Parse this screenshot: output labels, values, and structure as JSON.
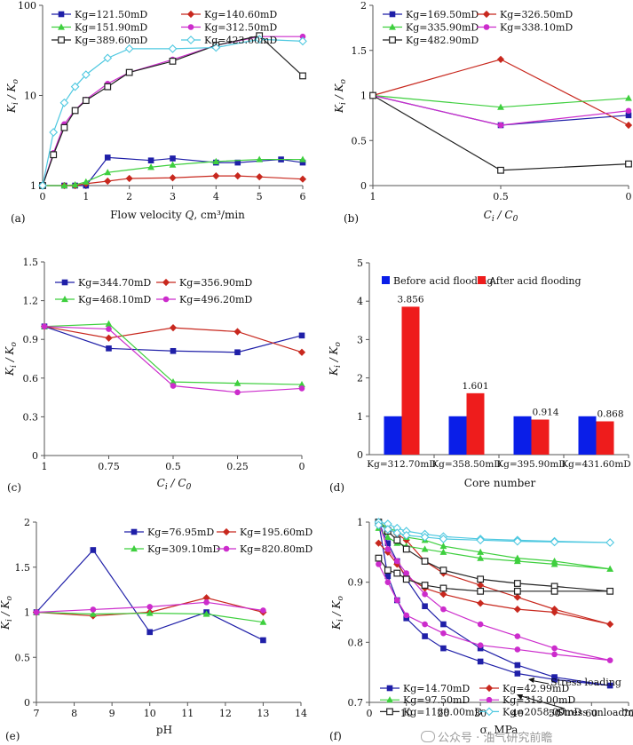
{
  "watermark": "公众号 · 油气研究前瞻",
  "chart_data": [
    {
      "panel": "(a)",
      "type": "line",
      "yscale": "log",
      "xlabel": "Flow velocity Q, cm³/min",
      "ylabel": "Ki / K0",
      "xlim": [
        0,
        6
      ],
      "ylim": [
        1,
        100
      ],
      "xticks": [
        "0",
        "1",
        "2",
        "3",
        "4",
        "5",
        "6"
      ],
      "yticks": [
        "1",
        "10",
        "100"
      ],
      "series": [
        {
          "name": "Kg=121.50mD",
          "color": "#1f1fa8",
          "marker": "square",
          "x": [
            0,
            0.5,
            0.75,
            1,
            1.5,
            2.5,
            3,
            4,
            4.5,
            5.5,
            6
          ],
          "y": [
            1,
            1,
            1,
            1,
            2.05,
            1.9,
            2.0,
            1.8,
            1.8,
            1.95,
            1.8
          ]
        },
        {
          "name": "Kg=140.60mD",
          "color": "#c8281e",
          "marker": "diamond",
          "x": [
            0,
            0.5,
            0.75,
            1,
            1.5,
            2,
            3,
            4,
            4.5,
            5,
            6
          ],
          "y": [
            1,
            1,
            1,
            1.05,
            1.12,
            1.2,
            1.22,
            1.28,
            1.28,
            1.25,
            1.18
          ]
        },
        {
          "name": "Kg=151.90mD",
          "color": "#3ecf3e",
          "marker": "triangle",
          "x": [
            0,
            0.5,
            0.75,
            1,
            1.5,
            2.5,
            3,
            4,
            5,
            6
          ],
          "y": [
            1,
            1,
            1.02,
            1.1,
            1.4,
            1.6,
            1.7,
            1.85,
            1.95,
            1.95
          ]
        },
        {
          "name": "Kg=312.50mD",
          "color": "#cc2ccc",
          "marker": "circle",
          "x": [
            0,
            0.25,
            0.5,
            0.75,
            1,
            1.5,
            2,
            3,
            4,
            5,
            6
          ],
          "y": [
            1,
            2.3,
            4.8,
            6.9,
            9.0,
            13.5,
            18,
            25,
            36,
            45,
            45
          ]
        },
        {
          "name": "Kg=389.60mD",
          "color": "#222222",
          "marker": "square-open",
          "x": [
            0,
            0.25,
            0.5,
            0.75,
            1,
            1.5,
            2,
            3,
            4,
            5,
            6
          ],
          "y": [
            1,
            2.2,
            4.4,
            6.8,
            8.8,
            12.5,
            18,
            24,
            36,
            46,
            16.5
          ]
        },
        {
          "name": "Kg=423.60mD",
          "color": "#4ec8e0",
          "marker": "diamond-open",
          "x": [
            0,
            0.25,
            0.5,
            0.75,
            1,
            1.5,
            2,
            3,
            4,
            5,
            6
          ],
          "y": [
            1,
            3.9,
            8.3,
            12.5,
            17,
            26,
            33,
            33,
            34,
            42,
            40
          ]
        }
      ]
    },
    {
      "panel": "(b)",
      "type": "line",
      "xlabel": "Ci / C0",
      "ylabel": "Ki / K0",
      "ylim": [
        0,
        2
      ],
      "categories": [
        "1",
        "0.5",
        "0"
      ],
      "yticks": [
        "0",
        "0.5",
        "1",
        "1.5",
        "2"
      ],
      "series": [
        {
          "name": "Kg=169.50mD",
          "color": "#1f1fa8",
          "marker": "square",
          "values": [
            1,
            0.67,
            0.78
          ]
        },
        {
          "name": "Kg=326.50mD",
          "color": "#c8281e",
          "marker": "diamond",
          "values": [
            1,
            1.4,
            0.67
          ]
        },
        {
          "name": "Kg=335.90mD",
          "color": "#3ecf3e",
          "marker": "triangle",
          "values": [
            1,
            0.87,
            0.97
          ]
        },
        {
          "name": "Kg=338.10mD",
          "color": "#cc2ccc",
          "marker": "circle",
          "values": [
            1,
            0.67,
            0.83
          ]
        },
        {
          "name": "Kg=482.90mD",
          "color": "#222222",
          "marker": "square-open",
          "values": [
            1,
            0.17,
            0.24
          ]
        }
      ]
    },
    {
      "panel": "(c)",
      "type": "line",
      "xlabel": "Ci / C0",
      "ylabel": "Ki / K0",
      "ylim": [
        0,
        1.5
      ],
      "categories": [
        "1",
        "0.75",
        "0.5",
        "0.25",
        "0"
      ],
      "yticks": [
        "0",
        "0.3",
        "0.6",
        "0.9",
        "1.2",
        "1.5"
      ],
      "series": [
        {
          "name": "Kg=344.70mD",
          "color": "#1f1fa8",
          "marker": "square",
          "values": [
            1,
            0.83,
            0.81,
            0.8,
            0.93
          ]
        },
        {
          "name": "Kg=356.90mD",
          "color": "#c8281e",
          "marker": "diamond",
          "values": [
            1,
            0.91,
            0.99,
            0.96,
            0.8
          ]
        },
        {
          "name": "Kg=468.10mD",
          "color": "#3ecf3e",
          "marker": "triangle",
          "values": [
            1,
            1.02,
            0.57,
            0.56,
            0.55
          ]
        },
        {
          "name": "Kg=496.20mD",
          "color": "#cc2ccc",
          "marker": "circle",
          "values": [
            1,
            0.98,
            0.54,
            0.49,
            0.52
          ]
        }
      ]
    },
    {
      "panel": "(d)",
      "type": "bar",
      "xlabel": "Core number",
      "ylabel": "Ki / K0",
      "ylim": [
        0,
        5
      ],
      "yticks": [
        "0",
        "1",
        "2",
        "3",
        "4",
        "5"
      ],
      "categories": [
        "Kg=312.70mD",
        "Kg=358.50mD",
        "Kg=395.90mD",
        "Kg=431.60mD"
      ],
      "series": [
        {
          "name": "Before acid flooding",
          "color": "#0a1ee8",
          "values": [
            1,
            1,
            1,
            1
          ],
          "labels": [
            "",
            "",
            "",
            ""
          ]
        },
        {
          "name": "After acid flooding",
          "color": "#ee1c1c",
          "values": [
            3.856,
            1.601,
            0.914,
            0.868
          ],
          "labels": [
            "3.856",
            "1.601",
            "0.914",
            "0.868"
          ]
        }
      ]
    },
    {
      "panel": "(e)",
      "type": "line",
      "xlabel": "pH",
      "ylabel": "Ki / K0",
      "xlim": [
        7,
        14
      ],
      "ylim": [
        0,
        2
      ],
      "xticks": [
        "7",
        "8",
        "9",
        "10",
        "11",
        "12",
        "13",
        "14"
      ],
      "yticks": [
        "0",
        "0.5",
        "1",
        "1.5",
        "2"
      ],
      "series": [
        {
          "name": "Kg=76.95mD",
          "color": "#1f1fa8",
          "marker": "square",
          "x": [
            7,
            8.5,
            10,
            11.5,
            13
          ],
          "y": [
            1,
            1.69,
            0.78,
            1.0,
            0.69
          ]
        },
        {
          "name": "Kg=195.60mD",
          "color": "#c8281e",
          "marker": "diamond",
          "x": [
            7,
            8.5,
            10,
            11.5,
            13
          ],
          "y": [
            1,
            0.96,
            1.0,
            1.16,
            1.0
          ]
        },
        {
          "name": "Kg=309.10mD",
          "color": "#3ecf3e",
          "marker": "triangle",
          "x": [
            7,
            8.5,
            10,
            11.5,
            13
          ],
          "y": [
            1,
            0.98,
            0.99,
            0.98,
            0.89
          ]
        },
        {
          "name": "Kg=820.80mD",
          "color": "#cc2ccc",
          "marker": "circle",
          "x": [
            7,
            8.5,
            10,
            11.5,
            13
          ],
          "y": [
            1,
            1.03,
            1.06,
            1.11,
            1.02
          ]
        }
      ]
    },
    {
      "panel": "(f)",
      "type": "line",
      "xlabel": "σ, MPa",
      "ylabel": "Ki / K0",
      "xlim": [
        0,
        70
      ],
      "ylim": [
        0.7,
        1
      ],
      "xticks": [
        "0",
        "10",
        "20",
        "30",
        "40",
        "50",
        "60",
        "70"
      ],
      "yticks": [
        "0.7",
        "0.8",
        "0.9",
        "1"
      ],
      "annotations": [
        "Stress loading",
        "Stress unloading"
      ],
      "series": [
        {
          "name": "Kg=14.70mD",
          "color": "#1f1fa8",
          "marker": "square",
          "x": [
            2.5,
            5,
            7.5,
            10,
            15,
            20,
            30,
            40,
            50,
            65,
            50,
            40,
            30,
            20,
            15,
            10,
            7.5,
            5,
            2.5
          ],
          "y": [
            1,
            0.965,
            0.935,
            0.905,
            0.86,
            0.83,
            0.79,
            0.762,
            0.742,
            0.728,
            0.738,
            0.748,
            0.768,
            0.79,
            0.81,
            0.84,
            0.87,
            0.91,
            1
          ]
        },
        {
          "name": "Kg=42.99mD",
          "color": "#c8281e",
          "marker": "diamond",
          "x": [
            2.5,
            5,
            7.5,
            10,
            15,
            20,
            30,
            40,
            50,
            65,
            50,
            40,
            30,
            20,
            15,
            10,
            7.5,
            5,
            2.5
          ],
          "y": [
            1,
            0.99,
            0.98,
            0.97,
            0.935,
            0.915,
            0.895,
            0.875,
            0.855,
            0.83,
            0.85,
            0.855,
            0.865,
            0.88,
            0.89,
            0.91,
            0.93,
            0.95,
            0.965
          ]
        },
        {
          "name": "Kg=97.50mD",
          "color": "#3ecf3e",
          "marker": "triangle",
          "x": [
            2.5,
            5,
            7.5,
            10,
            15,
            20,
            30,
            40,
            50,
            65,
            50,
            40,
            30,
            20,
            15,
            10,
            7.5,
            5,
            2.5
          ],
          "y": [
            1,
            0.99,
            0.985,
            0.975,
            0.97,
            0.96,
            0.95,
            0.94,
            0.935,
            0.922,
            0.93,
            0.935,
            0.94,
            0.95,
            0.955,
            0.96,
            0.965,
            0.975,
            0.99
          ]
        },
        {
          "name": "Kg=313.00mD",
          "color": "#cc2ccc",
          "marker": "circle",
          "x": [
            2.5,
            5,
            7.5,
            10,
            15,
            20,
            30,
            40,
            50,
            65,
            50,
            40,
            30,
            20,
            15,
            10,
            7.5,
            5,
            2.5
          ],
          "y": [
            1,
            0.955,
            0.935,
            0.915,
            0.88,
            0.855,
            0.83,
            0.81,
            0.79,
            0.77,
            0.78,
            0.788,
            0.795,
            0.815,
            0.83,
            0.845,
            0.87,
            0.9,
            0.93
          ]
        },
        {
          "name": "Kg=1189.00mD",
          "color": "#222222",
          "marker": "square-open",
          "x": [
            2.5,
            5,
            7.5,
            10,
            15,
            20,
            30,
            40,
            50,
            65,
            50,
            40,
            30,
            20,
            15,
            10,
            7.5,
            5,
            2.5
          ],
          "y": [
            1,
            0.985,
            0.97,
            0.955,
            0.935,
            0.92,
            0.905,
            0.898,
            0.893,
            0.885,
            0.885,
            0.885,
            0.885,
            0.89,
            0.895,
            0.905,
            0.915,
            0.92,
            0.94
          ]
        },
        {
          "name": "Kg=2058.00mD",
          "color": "#4ec8e0",
          "marker": "diamond-open",
          "x": [
            2.5,
            5,
            7.5,
            10,
            15,
            20,
            30,
            40,
            50,
            65,
            50,
            40,
            30,
            20,
            15,
            10,
            7.5,
            5,
            2.5
          ],
          "y": [
            1,
            0.997,
            0.99,
            0.985,
            0.98,
            0.976,
            0.972,
            0.97,
            0.968,
            0.966,
            0.967,
            0.968,
            0.97,
            0.972,
            0.975,
            0.978,
            0.982,
            0.988,
            0.995
          ]
        }
      ]
    }
  ]
}
